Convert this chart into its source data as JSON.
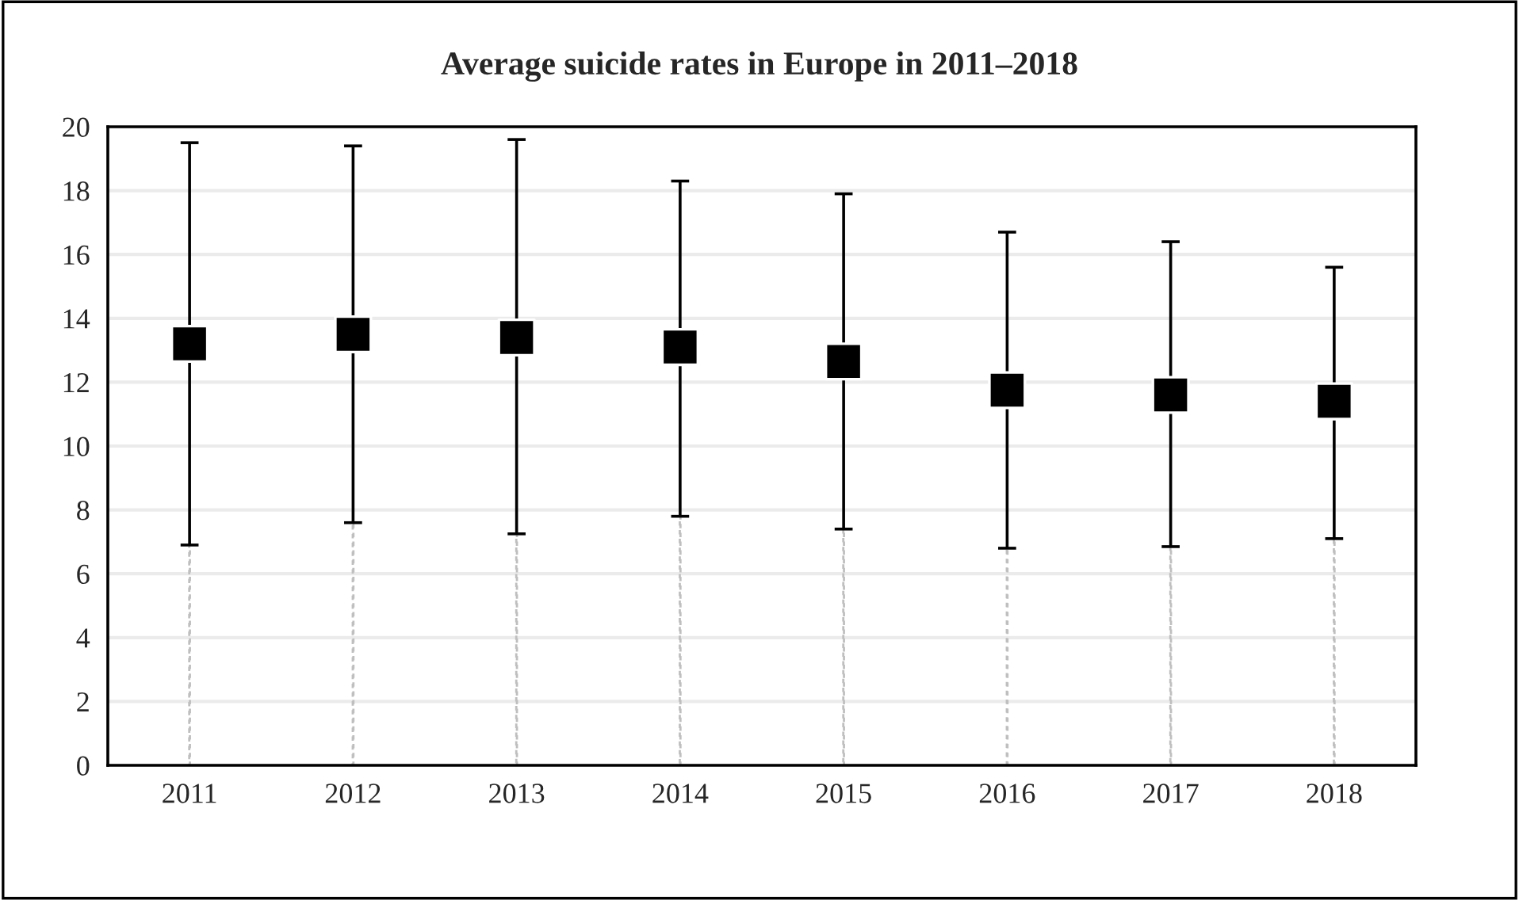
{
  "chart_data": {
    "type": "scatter",
    "title": "Average suicide rates in Europe in 2011–2018",
    "categories": [
      "2011",
      "2012",
      "2013",
      "2014",
      "2015",
      "2016",
      "2017",
      "2018"
    ],
    "series": [
      {
        "type": "bar",
        "color": "#bfbfbf",
        "line_style": "dashed",
        "values": [
          6.9,
          7.6,
          7.25,
          7.8,
          7.4,
          6.8,
          6.85,
          7.1
        ]
      },
      {
        "color": "#000000",
        "values": [
          13.2,
          13.5,
          13.4,
          13.1,
          12.65,
          11.75,
          11.6,
          11.4
        ],
        "errors": [
          [
            6.9,
            19.5
          ],
          [
            7.6,
            19.4
          ],
          [
            7.25,
            19.6
          ],
          [
            7.8,
            18.3
          ],
          [
            7.4,
            17.9
          ],
          [
            6.8,
            16.7
          ],
          [
            6.85,
            16.4
          ],
          [
            7.1,
            15.6
          ]
        ]
      }
    ],
    "ylim": [
      0,
      20
    ],
    "yticks": [
      0,
      2,
      4,
      6,
      8,
      10,
      12,
      14,
      16,
      18,
      20
    ],
    "grid": "y",
    "marker": "square",
    "legend": false
  }
}
